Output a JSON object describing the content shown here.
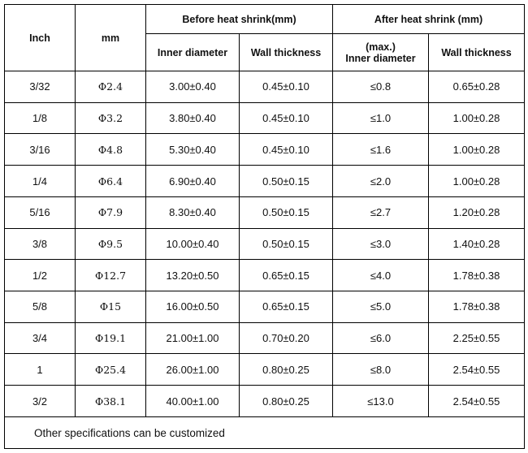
{
  "header": {
    "inch": "Inch",
    "mm": "mm",
    "before_group": "Before heat shrink(mm)",
    "after_group": "After heat shrink (mm)",
    "before_inner": "Inner diameter",
    "before_wall": "Wall thickness",
    "after_inner_max": "(max.)",
    "after_inner": "Inner diameter",
    "after_wall": "Wall thickness"
  },
  "rows": [
    {
      "inch": "3/32",
      "mm": "Φ2.4",
      "before_inner": "3.00±0.40",
      "before_wall": "0.45±0.10",
      "after_inner": "≤0.8",
      "after_wall": "0.65±0.28"
    },
    {
      "inch": "1/8",
      "mm": "Φ3.2",
      "before_inner": "3.80±0.40",
      "before_wall": "0.45±0.10",
      "after_inner": "≤1.0",
      "after_wall": "1.00±0.28"
    },
    {
      "inch": "3/16",
      "mm": "Φ4.8",
      "before_inner": "5.30±0.40",
      "before_wall": "0.45±0.10",
      "after_inner": "≤1.6",
      "after_wall": "1.00±0.28"
    },
    {
      "inch": "1/4",
      "mm": "Φ6.4",
      "before_inner": "6.90±0.40",
      "before_wall": "0.50±0.15",
      "after_inner": "≤2.0",
      "after_wall": "1.00±0.28"
    },
    {
      "inch": "5/16",
      "mm": "Φ7.9",
      "before_inner": "8.30±0.40",
      "before_wall": "0.50±0.15",
      "after_inner": "≤2.7",
      "after_wall": "1.20±0.28"
    },
    {
      "inch": "3/8",
      "mm": "Φ9.5",
      "before_inner": "10.00±0.40",
      "before_wall": "0.50±0.15",
      "after_inner": "≤3.0",
      "after_wall": "1.40±0.28"
    },
    {
      "inch": "1/2",
      "mm": "Φ12.7",
      "before_inner": "13.20±0.50",
      "before_wall": "0.65±0.15",
      "after_inner": "≤4.0",
      "after_wall": "1.78±0.38"
    },
    {
      "inch": "5/8",
      "mm": "Φ15",
      "before_inner": "16.00±0.50",
      "before_wall": "0.65±0.15",
      "after_inner": "≤5.0",
      "after_wall": "1.78±0.38"
    },
    {
      "inch": "3/4",
      "mm": "Φ19.1",
      "before_inner": "21.00±1.00",
      "before_wall": "0.70±0.20",
      "after_inner": "≤6.0",
      "after_wall": "2.25±0.55"
    },
    {
      "inch": "1",
      "mm": "Φ25.4",
      "before_inner": "26.00±1.00",
      "before_wall": "0.80±0.25",
      "after_inner": "≤8.0",
      "after_wall": "2.54±0.55"
    },
    {
      "inch": "3/2",
      "mm": "Φ38.1",
      "before_inner": "40.00±1.00",
      "before_wall": "0.80±0.25",
      "after_inner": "≤13.0",
      "after_wall": "2.54±0.55"
    }
  ],
  "footer": "Other specifications can be customized"
}
